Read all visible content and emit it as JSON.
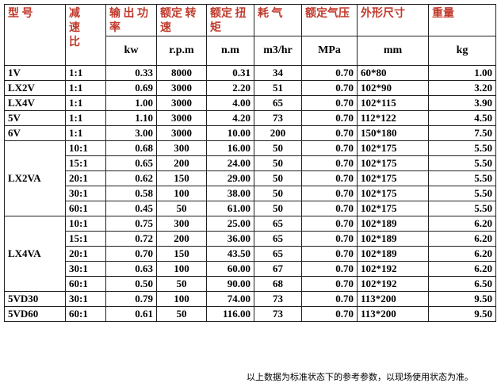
{
  "table": {
    "headers": [
      "型 号",
      "减速比",
      "输 出 功 率",
      "额定 转速",
      "额定 扭矩",
      "耗 气",
      "额定气压",
      "外形尺寸",
      "重量"
    ],
    "units": [
      "kw",
      "r.p.m",
      "n.m",
      "m3/hr",
      "MPa",
      "mm",
      "kg"
    ],
    "groups": [
      {
        "model": "1V",
        "rows": [
          [
            "1:1",
            "0.33",
            "8000",
            "0.31",
            "34",
            "0.70",
            "60*80",
            "1.00"
          ]
        ]
      },
      {
        "model": "LX2V",
        "rows": [
          [
            "1:1",
            "0.69",
            "3000",
            "2.20",
            "51",
            "0.70",
            "102*90",
            "3.20"
          ]
        ]
      },
      {
        "model": "LX4V",
        "rows": [
          [
            "1:1",
            "1.00",
            "3000",
            "4.00",
            "65",
            "0.70",
            "102*115",
            "3.90"
          ]
        ]
      },
      {
        "model": "5V",
        "rows": [
          [
            "1:1",
            "1.10",
            "3000",
            "4.20",
            "73",
            "0.70",
            "112*122",
            "4.50"
          ]
        ]
      },
      {
        "model": "6V",
        "rows": [
          [
            "1:1",
            "3.00",
            "3000",
            "10.00",
            "200",
            "0.70",
            "150*180",
            "7.50"
          ]
        ]
      },
      {
        "model": "LX2VA",
        "rows": [
          [
            "10:1",
            "0.68",
            "300",
            "16.00",
            "50",
            "0.70",
            "102*175",
            "5.50"
          ],
          [
            "15:1",
            "0.65",
            "200",
            "24.00",
            "50",
            "0.70",
            "102*175",
            "5.50"
          ],
          [
            "20:1",
            "0.62",
            "150",
            "29.00",
            "50",
            "0.70",
            "102*175",
            "5.50"
          ],
          [
            "30:1",
            "0.58",
            "100",
            "38.00",
            "50",
            "0.70",
            "102*175",
            "5.50"
          ],
          [
            "60:1",
            "0.45",
            "50",
            "61.00",
            "50",
            "0.70",
            "102*175",
            "5.50"
          ]
        ]
      },
      {
        "model": "LX4VA",
        "rows": [
          [
            "10:1",
            "0.75",
            "300",
            "25.00",
            "65",
            "0.70",
            "102*189",
            "6.20"
          ],
          [
            "15:1",
            "0.72",
            "200",
            "36.00",
            "65",
            "0.70",
            "102*189",
            "6.20"
          ],
          [
            "20:1",
            "0.70",
            "150",
            "43.50",
            "65",
            "0.70",
            "102*189",
            "6.20"
          ],
          [
            "30:1",
            "0.63",
            "100",
            "60.00",
            "67",
            "0.70",
            "102*192",
            "6.20"
          ],
          [
            "60:1",
            "0.50",
            "50",
            "90.00",
            "68",
            "0.70",
            "102*192",
            "6.50"
          ]
        ]
      },
      {
        "model": "5VD30",
        "rows": [
          [
            "30:1",
            "0.79",
            "100",
            "74.00",
            "73",
            "0.70",
            "113*200",
            "9.50"
          ]
        ]
      },
      {
        "model": "5VD60",
        "rows": [
          [
            "60:1",
            "0.61",
            "50",
            "116.00",
            "73",
            "0.70",
            "113*200",
            "9.50"
          ]
        ]
      }
    ]
  },
  "note": "以上数据为标准状态下的参考参数，以现场使用状态为准。"
}
